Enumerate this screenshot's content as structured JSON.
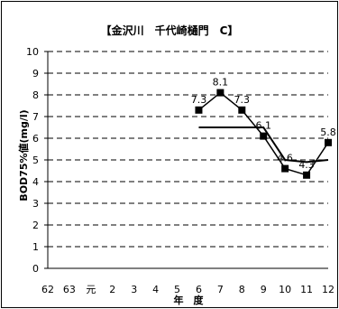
{
  "chart_data": {
    "type": "line",
    "title": "【金沢川　千代崎樋門　C】",
    "xlabel": "年　度",
    "ylabel": "BOD75%値(mg/l)",
    "categories": [
      "62",
      "63",
      "元",
      "2",
      "3",
      "4",
      "5",
      "6",
      "7",
      "8",
      "9",
      "10",
      "11",
      "12"
    ],
    "ylim": [
      0,
      10
    ],
    "yticks": [
      "0",
      "1",
      "2",
      "3",
      "4",
      "5",
      "6",
      "7",
      "8",
      "9",
      "10"
    ],
    "grid": "horizontal-dashed",
    "series": [
      {
        "marker": "square",
        "color": "#000000",
        "values": [
          null,
          null,
          null,
          null,
          null,
          null,
          null,
          7.3,
          8.1,
          7.3,
          6.1,
          4.6,
          4.3,
          5.8
        ],
        "labels": [
          "",
          "",
          "",
          "",
          "",
          "",
          "",
          "7.3",
          "8.1",
          "7.3",
          "6.1",
          "4.6",
          "4.3",
          "5.8"
        ]
      },
      {
        "marker": "none",
        "color": "#000000",
        "values": [
          null,
          null,
          null,
          null,
          null,
          null,
          null,
          6.5,
          6.5,
          6.5,
          6.5,
          5.0,
          4.9,
          5.0
        ]
      }
    ]
  }
}
